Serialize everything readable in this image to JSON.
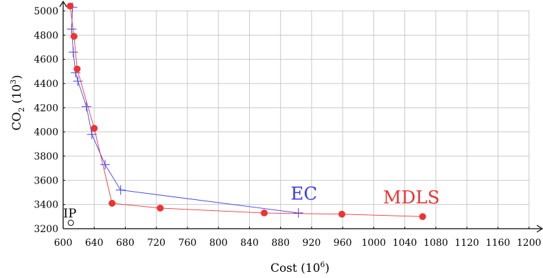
{
  "chart_data": {
    "type": "line",
    "title": "",
    "xlabel": "Cost (10",
    "xlabel_sup": "6",
    "xlabel_end": ")",
    "ylabel": "CO",
    "ylabel_sub": "2",
    "ylabel_mid": " (10",
    "ylabel_sup": "3",
    "ylabel_end": ")",
    "xlim": [
      600,
      1205
    ],
    "ylim": [
      3200,
      5050
    ],
    "x_ticks": [
      600,
      640,
      680,
      720,
      760,
      800,
      840,
      880,
      920,
      960,
      1000,
      1040,
      1080,
      1120,
      1160,
      1200
    ],
    "y_ticks": [
      3200,
      3400,
      3600,
      3800,
      4000,
      4200,
      4400,
      4600,
      4800,
      5000
    ],
    "grid": true,
    "series": [
      {
        "name": "EC",
        "color": "#3a3aff",
        "marker": "plus",
        "label_at": [
          893,
          3440
        ],
        "points": [
          [
            612,
            5030
          ],
          [
            611,
            4850
          ],
          [
            613,
            4660
          ],
          [
            616,
            4490
          ],
          [
            619,
            4420
          ],
          [
            630,
            4210
          ],
          [
            637,
            3980
          ],
          [
            654,
            3730
          ],
          [
            674,
            3520
          ],
          [
            903,
            3330
          ]
        ]
      },
      {
        "name": "MDLS",
        "color": "#ee3333",
        "marker": "circle",
        "label_at": [
          1012,
          3410
        ],
        "points": [
          [
            609,
            5040
          ],
          [
            614,
            4790
          ],
          [
            618,
            4520
          ],
          [
            640,
            4030
          ],
          [
            663,
            3410
          ],
          [
            725,
            3370
          ],
          [
            859,
            3330
          ],
          [
            959,
            3320
          ],
          [
            1063,
            3300
          ]
        ]
      }
    ],
    "point_annotations": [
      {
        "label": "IP",
        "x": 609,
        "y": 3260
      }
    ]
  }
}
